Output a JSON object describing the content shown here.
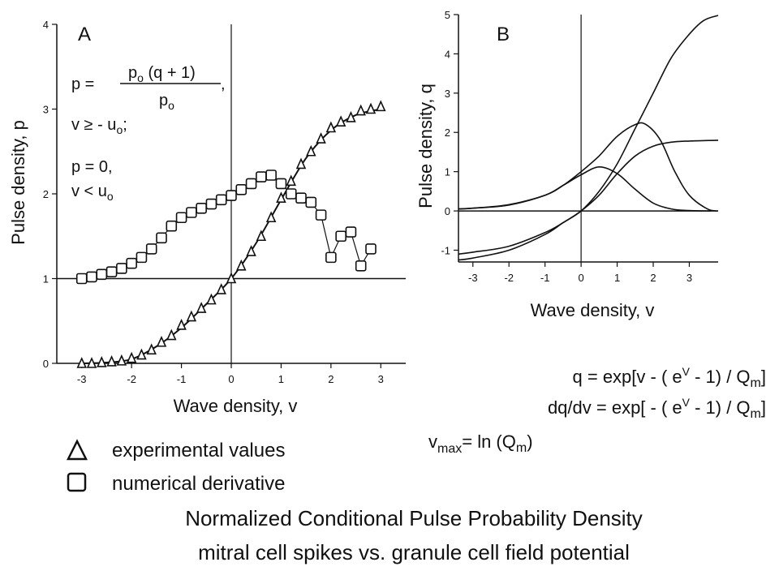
{
  "legend": {
    "triangle_label": "experimental values",
    "square_label": "numerical derivative"
  },
  "caption": {
    "line1": "Normalized Conditional Pulse Probability Density",
    "line2": "mitral cell spikes vs. granule cell field potential"
  },
  "equations_b": {
    "q": {
      "lhs": "q = exp[v - ( e",
      "sup": "V",
      "mid": " - 1) / Q",
      "sub": "m",
      "rhs": "]"
    },
    "dq": {
      "lhs": "dq/dv = exp[ - ( e",
      "sup": "V",
      "mid": " - 1) / Q",
      "sub": "m",
      "rhs": "]"
    },
    "vmax": {
      "v": "v",
      "sub": "max",
      "mid": "= ln (Q",
      "sub2": "m",
      "rhs": ")"
    }
  },
  "chart_data": [
    {
      "type": "scatter",
      "panel_label": "A",
      "xlabel": "Wave density, v",
      "ylabel": "Pulse density, p",
      "xlim": [
        -3.5,
        3.5
      ],
      "ylim": [
        0,
        4
      ],
      "xticks": [
        -3,
        -2,
        -1,
        0,
        1,
        2,
        3
      ],
      "yticks": [
        0,
        1,
        2,
        3,
        4
      ],
      "reference_lines": {
        "hline_y": 1,
        "vline_x": 0
      },
      "equations": {
        "p_eq": "p =",
        "numerator": "p",
        "numerator_sub": "o",
        "numerator_rest": " (q + 1)",
        "denominator": "p",
        "denominator_sub": "o",
        "comma": ",",
        "cond1": "v ≥ - u",
        "cond1_sub": "o",
        "cond1_end": ";",
        "p0": "p = 0,",
        "cond2": "v < u",
        "cond2_sub": "o"
      },
      "series": [
        {
          "marker": "triangle",
          "points": [
            [
              -3,
              0
            ],
            [
              -2.8,
              0
            ],
            [
              -2.6,
              0.01
            ],
            [
              -2.4,
              0.02
            ],
            [
              -2.2,
              0.03
            ],
            [
              -2.0,
              0.06
            ],
            [
              -1.8,
              0.1
            ],
            [
              -1.6,
              0.16
            ],
            [
              -1.4,
              0.25
            ],
            [
              -1.2,
              0.33
            ],
            [
              -1.0,
              0.45
            ],
            [
              -0.8,
              0.55
            ],
            [
              -0.6,
              0.65
            ],
            [
              -0.4,
              0.75
            ],
            [
              -0.2,
              0.87
            ],
            [
              0,
              1.0
            ],
            [
              0.2,
              1.15
            ],
            [
              0.4,
              1.32
            ],
            [
              0.6,
              1.5
            ],
            [
              0.8,
              1.72
            ],
            [
              1.0,
              1.95
            ],
            [
              1.2,
              2.15
            ],
            [
              1.4,
              2.35
            ],
            [
              1.6,
              2.5
            ],
            [
              1.8,
              2.65
            ],
            [
              2.0,
              2.78
            ],
            [
              2.2,
              2.85
            ],
            [
              2.4,
              2.9
            ],
            [
              2.6,
              2.98
            ],
            [
              2.8,
              3.0
            ],
            [
              3.0,
              3.03
            ]
          ],
          "curve": [
            [
              -3.0,
              0.0
            ],
            [
              -2.5,
              0.01
            ],
            [
              -2.0,
              0.05
            ],
            [
              -1.5,
              0.2
            ],
            [
              -1.0,
              0.42
            ],
            [
              -0.5,
              0.7
            ],
            [
              0,
              1.0
            ],
            [
              0.5,
              1.42
            ],
            [
              1.0,
              1.93
            ],
            [
              1.5,
              2.42
            ],
            [
              2.0,
              2.75
            ],
            [
              2.5,
              2.93
            ],
            [
              3.0,
              3.0
            ]
          ]
        },
        {
          "marker": "square",
          "points": [
            [
              -3.0,
              1.0
            ],
            [
              -2.8,
              1.02
            ],
            [
              -2.6,
              1.05
            ],
            [
              -2.4,
              1.08
            ],
            [
              -2.2,
              1.12
            ],
            [
              -2.0,
              1.18
            ],
            [
              -1.8,
              1.25
            ],
            [
              -1.6,
              1.35
            ],
            [
              -1.4,
              1.48
            ],
            [
              -1.2,
              1.62
            ],
            [
              -1.0,
              1.72
            ],
            [
              -0.8,
              1.78
            ],
            [
              -0.6,
              1.83
            ],
            [
              -0.4,
              1.88
            ],
            [
              -0.2,
              1.93
            ],
            [
              0,
              1.98
            ],
            [
              0.2,
              2.05
            ],
            [
              0.4,
              2.12
            ],
            [
              0.6,
              2.2
            ],
            [
              0.8,
              2.22
            ],
            [
              1.0,
              2.12
            ],
            [
              1.2,
              2.0
            ],
            [
              1.4,
              1.95
            ],
            [
              1.6,
              1.9
            ],
            [
              1.8,
              1.75
            ],
            [
              2.0,
              1.25
            ],
            [
              2.2,
              1.5
            ],
            [
              2.4,
              1.55
            ],
            [
              2.6,
              1.15
            ],
            [
              2.8,
              1.35
            ]
          ]
        }
      ]
    },
    {
      "type": "line",
      "panel_label": "B",
      "xlabel": "Wave density, v",
      "ylabel": "Pulse density, q",
      "xlim": [
        -3.4,
        3.8
      ],
      "ylim": [
        -1.3,
        5
      ],
      "xticks": [
        -3,
        -2,
        -1,
        0,
        1,
        2,
        3
      ],
      "yticks": [
        -1,
        0,
        1,
        2,
        3,
        4,
        5
      ],
      "reference_lines": {
        "hline_y": 0,
        "vline_x": 0
      },
      "series": [
        {
          "points": [
            [
              -3.4,
              0.05
            ],
            [
              -3,
              0.07
            ],
            [
              -2,
              0.15
            ],
            [
              -1,
              0.4
            ],
            [
              -0.5,
              0.65
            ],
            [
              0,
              0.92
            ],
            [
              0.5,
              1.12
            ],
            [
              1,
              0.95
            ],
            [
              1.5,
              0.55
            ],
            [
              2,
              0.2
            ],
            [
              2.5,
              0.05
            ],
            [
              3,
              0.01
            ],
            [
              3.6,
              0
            ]
          ]
        },
        {
          "points": [
            [
              -3.4,
              0.05
            ],
            [
              -3,
              0.07
            ],
            [
              -2,
              0.16
            ],
            [
              -1,
              0.4
            ],
            [
              -0.5,
              0.65
            ],
            [
              0,
              1.0
            ],
            [
              0.5,
              1.4
            ],
            [
              1,
              1.9
            ],
            [
              1.5,
              2.2
            ],
            [
              1.8,
              2.2
            ],
            [
              2.2,
              1.8
            ],
            [
              2.6,
              1.0
            ],
            [
              3,
              0.4
            ],
            [
              3.5,
              0.05
            ],
            [
              3.8,
              0
            ]
          ]
        },
        {
          "points": [
            [
              -3.4,
              -1.25
            ],
            [
              -3,
              -1.2
            ],
            [
              -2,
              -1.0
            ],
            [
              -1,
              -0.6
            ],
            [
              -0.5,
              -0.3
            ],
            [
              0,
              0
            ],
            [
              0.5,
              0.5
            ],
            [
              1,
              1.2
            ],
            [
              1.5,
              2.1
            ],
            [
              2,
              3.0
            ],
            [
              2.5,
              3.9
            ],
            [
              3,
              4.5
            ],
            [
              3.4,
              4.85
            ],
            [
              3.8,
              4.98
            ]
          ]
        },
        {
          "points": [
            [
              -3.4,
              -1.1
            ],
            [
              -3,
              -1.05
            ],
            [
              -2,
              -0.9
            ],
            [
              -1,
              -0.55
            ],
            [
              -0.5,
              -0.3
            ],
            [
              0,
              0
            ],
            [
              0.5,
              0.4
            ],
            [
              1,
              0.95
            ],
            [
              1.5,
              1.4
            ],
            [
              2,
              1.65
            ],
            [
              2.5,
              1.75
            ],
            [
              3,
              1.78
            ],
            [
              3.8,
              1.8
            ]
          ]
        }
      ]
    }
  ]
}
